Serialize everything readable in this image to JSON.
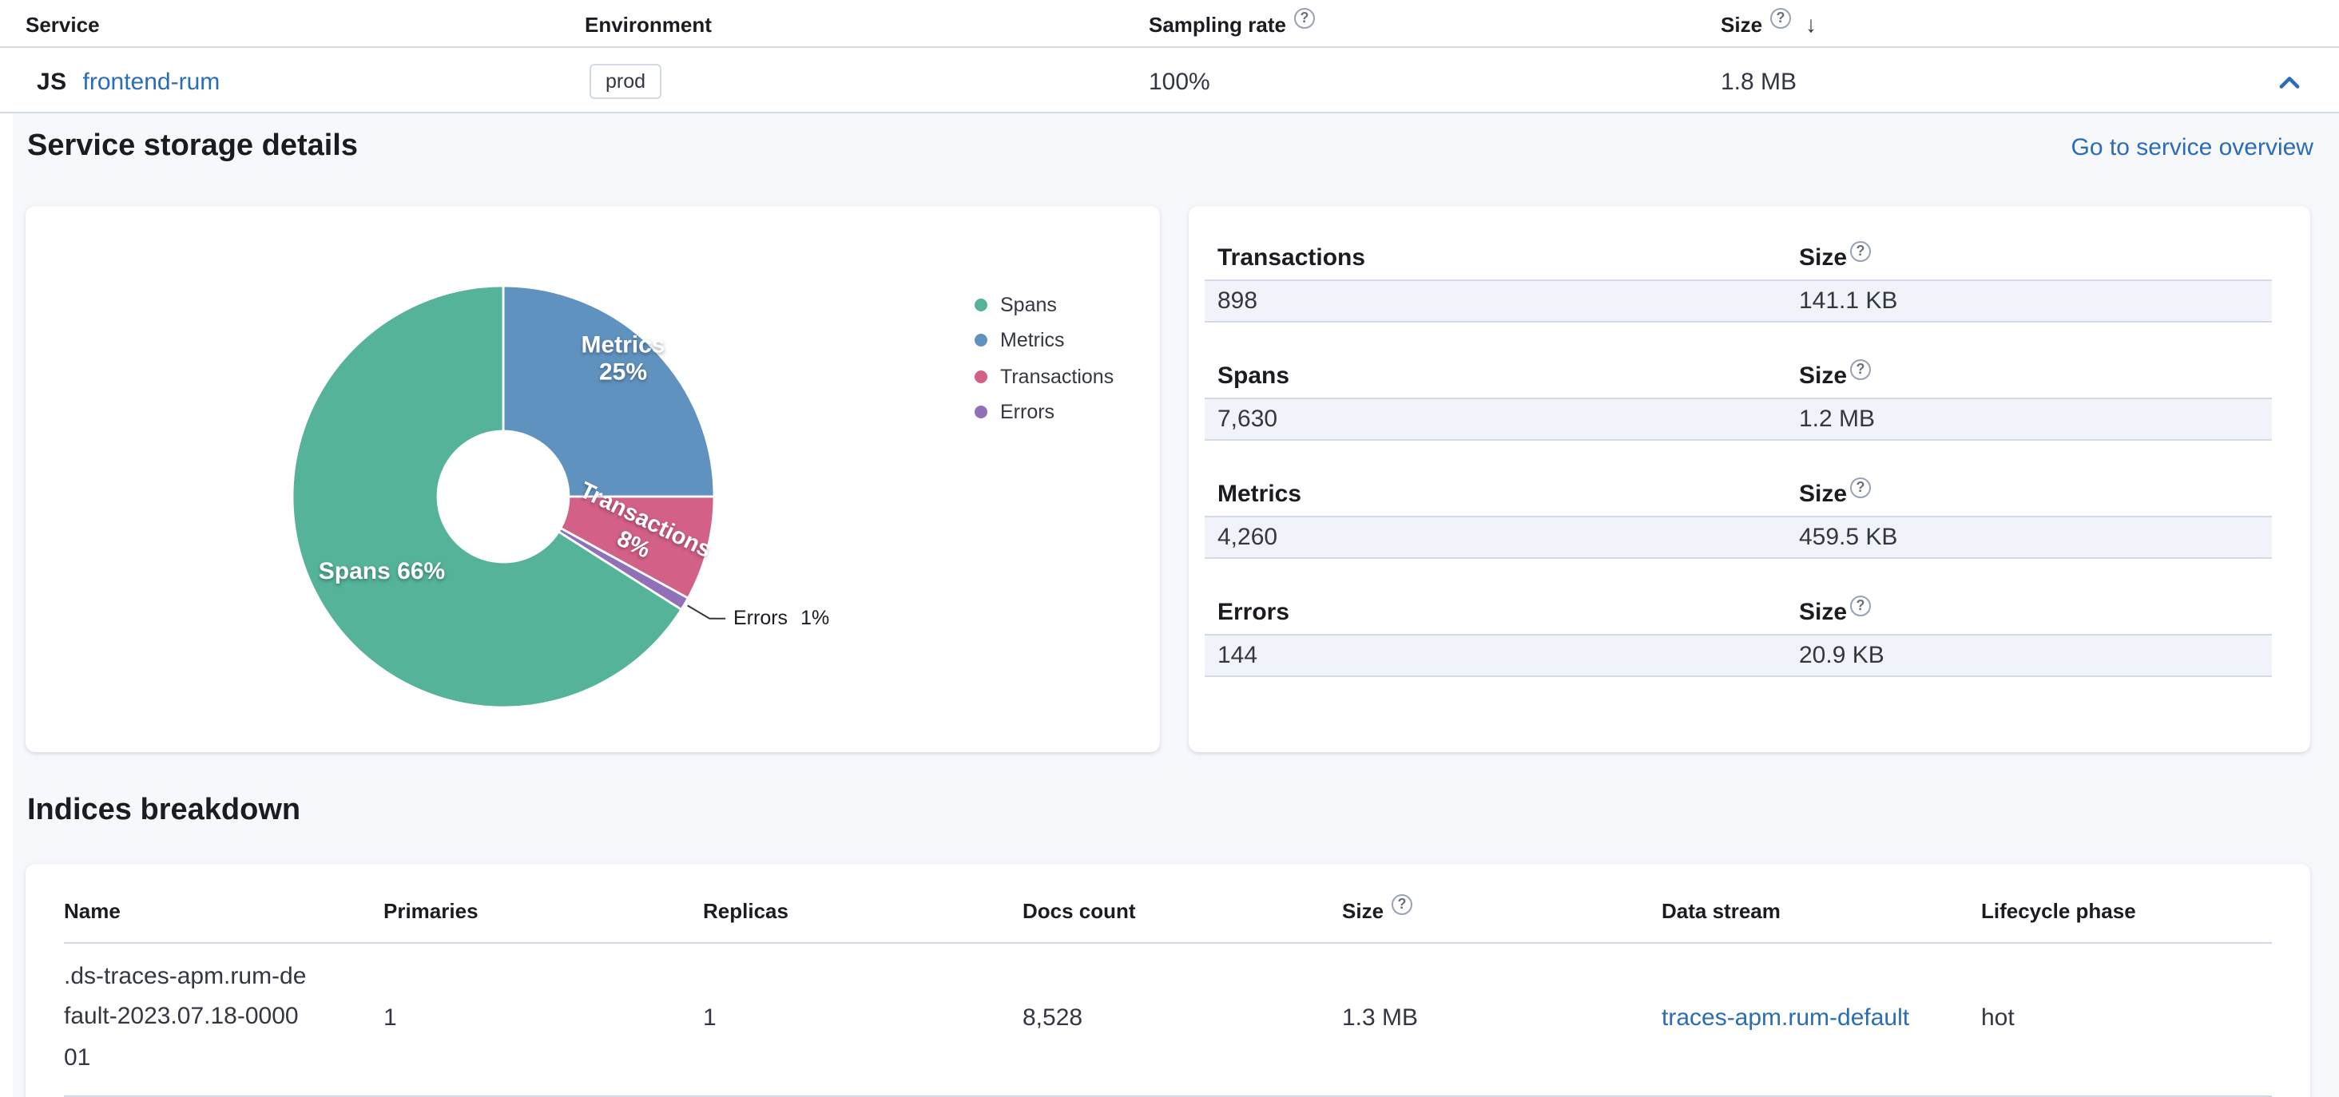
{
  "colors": {
    "link": "#2a6cb7",
    "spans": "#54b399",
    "metrics": "#6092c0",
    "transactions": "#d36086",
    "errors": "#9170b8"
  },
  "service_table": {
    "headers": {
      "service": "Service",
      "environment": "Environment",
      "sampling_rate": "Sampling rate",
      "size": "Size"
    },
    "row": {
      "agent": "JS",
      "name": "frontend-rum",
      "environment": "prod",
      "sampling_rate": "100%",
      "size": "1.8 MB"
    }
  },
  "storage_details": {
    "title": "Service storage details",
    "overview_link": "Go to service overview",
    "stats": [
      {
        "label": "Transactions",
        "size_label": "Size",
        "count": "898",
        "size": "141.1 KB"
      },
      {
        "label": "Spans",
        "size_label": "Size",
        "count": "7,630",
        "size": "1.2 MB"
      },
      {
        "label": "Metrics",
        "size_label": "Size",
        "count": "4,260",
        "size": "459.5 KB"
      },
      {
        "label": "Errors",
        "size_label": "Size",
        "count": "144",
        "size": "20.9 KB"
      }
    ]
  },
  "chart_data": {
    "type": "pie",
    "donut": true,
    "legend_position": "right",
    "start_angle_deg": 0,
    "slices": [
      {
        "label": "Metrics",
        "value": 25,
        "pct_label": "25%",
        "color": "#6092c0"
      },
      {
        "label": "Transactions",
        "value": 8,
        "pct_label": "8%",
        "color": "#d36086"
      },
      {
        "label": "Errors",
        "value": 1,
        "pct_label": "1%",
        "color": "#9170b8"
      },
      {
        "label": "Spans",
        "value": 66,
        "pct_label": "66%",
        "color": "#54b399"
      }
    ],
    "legend": [
      {
        "label": "Spans",
        "color": "#54b399"
      },
      {
        "label": "Metrics",
        "color": "#6092c0"
      },
      {
        "label": "Transactions",
        "color": "#d36086"
      },
      {
        "label": "Errors",
        "color": "#9170b8"
      }
    ]
  },
  "indices": {
    "title": "Indices breakdown",
    "headers": [
      "Name",
      "Primaries",
      "Replicas",
      "Docs count",
      "Size",
      "Data stream",
      "Lifecycle phase"
    ],
    "rows": [
      {
        "name": ".ds-traces-apm.rum-default-2023.07.18-000001",
        "primaries": "1",
        "replicas": "1",
        "docs_count": "8,528",
        "size": "1.3 MB",
        "data_stream": "traces-apm.rum-default",
        "lifecycle_phase": "hot"
      }
    ]
  }
}
